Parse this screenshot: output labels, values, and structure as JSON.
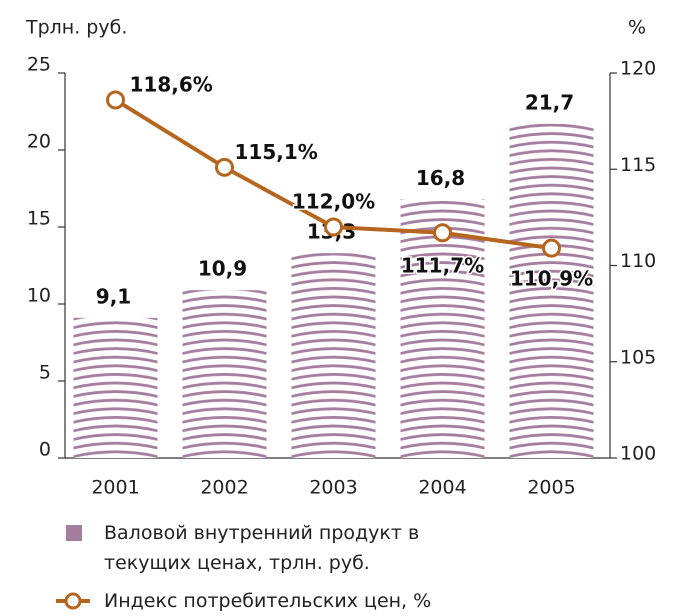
{
  "chart_data": {
    "type": "combo",
    "y_axis_label": "Трлн. руб.",
    "y2_axis_label": "%",
    "categories": [
      "2001",
      "2002",
      "2003",
      "2004",
      "2005"
    ],
    "series": [
      {
        "name": "Валовой внутренний продукт в текущих ценах, трлн. руб.",
        "type": "bar",
        "color": "#a47d9f",
        "values": [
          9.1,
          10.9,
          13.3,
          16.8,
          21.7
        ],
        "value_labels": [
          "9,1",
          "10,9",
          "13,3",
          "16,8",
          "21,7"
        ]
      },
      {
        "name": "Индекс потребительских цен, %",
        "type": "line",
        "axis": "y2",
        "color": "#b5651d",
        "values": [
          118.6,
          115.1,
          112.0,
          111.7,
          110.9
        ],
        "value_labels": [
          "118,6%",
          "115,1%",
          "112,0%",
          "111,7%",
          "110,9%"
        ]
      }
    ],
    "ylim": [
      0,
      25
    ],
    "yticks": [
      0,
      5,
      10,
      15,
      20,
      25
    ],
    "y2lim": [
      100,
      120
    ],
    "y2ticks": [
      100,
      105,
      110,
      115,
      120
    ]
  }
}
